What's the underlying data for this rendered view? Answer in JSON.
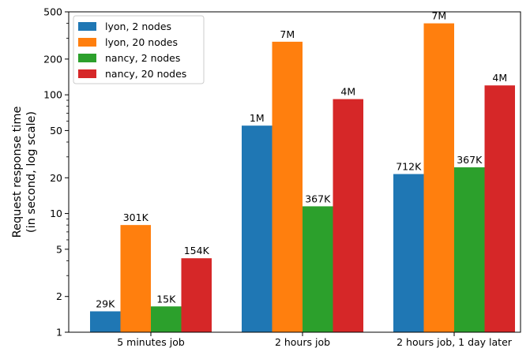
{
  "chart_data": {
    "type": "bar",
    "title": "",
    "xlabel": "",
    "ylabel": [
      "Request response time",
      "(in second, log scale)"
    ],
    "yscale": "log",
    "ylim": [
      1,
      500
    ],
    "yticks": [
      1,
      2,
      5,
      10,
      20,
      50,
      100,
      200,
      500
    ],
    "categories": [
      "5 minutes job",
      "2 hours job",
      "2 hours job, 1 day later"
    ],
    "legend": "top-left",
    "grid": false,
    "series": [
      {
        "name": "lyon, 2 nodes",
        "color": "#1f77b4",
        "values": [
          1.5,
          55,
          21.5
        ],
        "labels": [
          "29K",
          "1M",
          "712K"
        ]
      },
      {
        "name": "lyon, 20 nodes",
        "color": "#ff7f0e",
        "values": [
          8,
          280,
          400
        ],
        "labels": [
          "301K",
          "7M",
          "7M"
        ]
      },
      {
        "name": "nancy, 2 nodes",
        "color": "#2ca02c",
        "values": [
          1.65,
          11.5,
          24.5
        ],
        "labels": [
          "15K",
          "367K",
          "367K"
        ]
      },
      {
        "name": "nancy, 20 nodes",
        "color": "#d62728",
        "values": [
          4.2,
          92,
          120
        ],
        "labels": [
          "154K",
          "4M",
          "4M"
        ]
      }
    ]
  }
}
